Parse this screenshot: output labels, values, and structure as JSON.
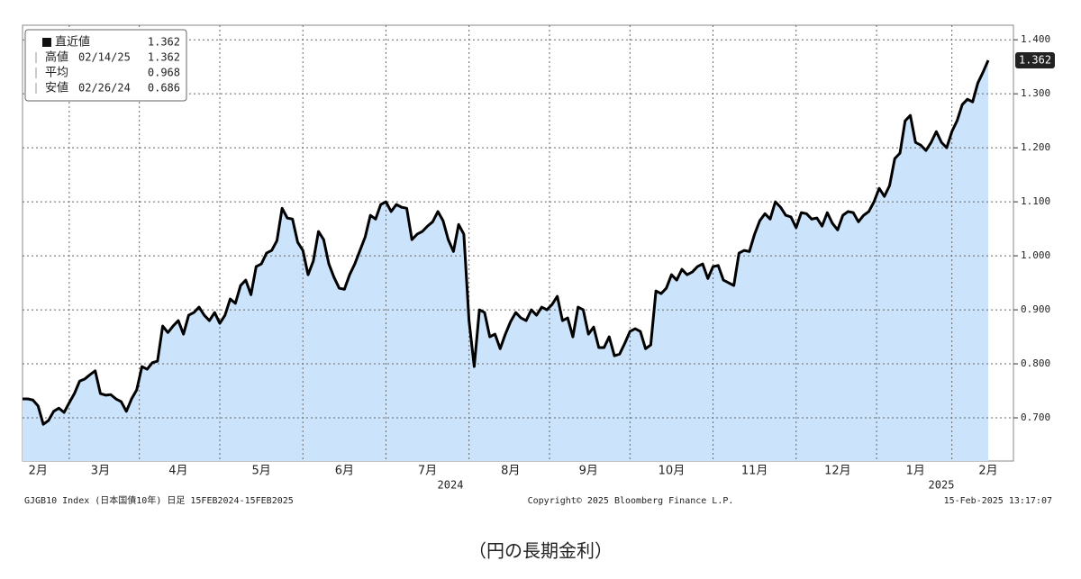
{
  "chart_data": {
    "type": "line",
    "caption": "（円の長期金利）",
    "series_name": "GJGB10 Index (日本国債10年) 日足 15FEB2024-15FEB2025",
    "copyright": "Copyright© 2025 Bloomberg Finance L.P.",
    "timestamp": "15-Feb-2025 13:17:07",
    "year_labels": [
      "2024",
      "2025"
    ],
    "legend": [
      {
        "name": "直近値",
        "value": 1.362
      },
      {
        "name": "高値",
        "date": "02/14/25",
        "value": 1.362
      },
      {
        "name": "平均",
        "value": 0.968
      },
      {
        "name": "安値",
        "date": "02/26/24",
        "value": 0.686
      }
    ],
    "color": "#000000",
    "fill": "#cce4fb",
    "grid": true,
    "ylim": [
      0.62,
      1.427
    ],
    "yticks": [
      {
        "value": 0.7,
        "label": "0.700"
      },
      {
        "value": 0.8,
        "label": "0.800"
      },
      {
        "value": 0.9,
        "label": "0.900"
      },
      {
        "value": 1.0,
        "label": "1.000"
      },
      {
        "value": 1.1,
        "label": "1.100"
      },
      {
        "value": 1.2,
        "label": "1.200"
      },
      {
        "value": 1.3,
        "label": "1.300"
      },
      {
        "value": 1.4,
        "label": "1.400"
      }
    ],
    "categories": [
      null,
      null,
      null,
      "2月",
      null,
      null,
      null,
      null,
      null,
      null,
      null,
      null,
      null,
      null,
      null,
      "3月",
      null,
      null,
      null,
      null,
      null,
      null,
      null,
      null,
      null,
      null,
      null,
      null,
      null,
      null,
      "4月",
      null,
      null,
      null,
      null,
      null,
      null,
      null,
      null,
      null,
      null,
      null,
      null,
      null,
      null,
      null,
      "5月",
      null,
      null,
      null,
      null,
      null,
      null,
      null,
      null,
      null,
      null,
      null,
      null,
      null,
      null,
      null,
      "6月",
      null,
      null,
      null,
      null,
      null,
      null,
      null,
      null,
      null,
      null,
      null,
      null,
      null,
      null,
      null,
      "7月",
      null,
      null,
      null,
      null,
      null,
      null,
      null,
      null,
      null,
      null,
      null,
      null,
      null,
      null,
      null,
      "8月",
      null,
      null,
      null,
      null,
      null,
      null,
      null,
      null,
      null,
      null,
      null,
      null,
      null,
      null,
      "9月",
      null,
      null,
      null,
      null,
      null,
      null,
      null,
      null,
      null,
      null,
      null,
      null,
      null,
      null,
      null,
      "10月",
      null,
      null,
      null,
      null,
      null,
      null,
      null,
      null,
      null,
      null,
      null,
      null,
      null,
      null,
      null,
      "11月",
      null,
      null,
      null,
      null,
      null,
      null,
      null,
      null,
      null,
      null,
      null,
      null,
      null,
      null,
      null,
      "12月",
      null,
      null,
      null,
      null,
      null,
      null,
      null,
      null,
      null,
      null,
      null,
      null,
      null,
      null,
      "1月",
      null,
      null,
      null,
      null,
      null,
      null,
      null,
      null,
      null,
      null,
      null,
      null,
      null,
      "2月"
    ],
    "values": [
      0.735,
      0.735,
      0.733,
      0.722,
      0.688,
      0.695,
      0.712,
      0.718,
      0.71,
      0.728,
      0.745,
      0.768,
      0.772,
      0.78,
      0.787,
      0.745,
      0.742,
      0.743,
      0.735,
      0.73,
      0.712,
      0.735,
      0.752,
      0.795,
      0.79,
      0.802,
      0.805,
      0.87,
      0.858,
      0.87,
      0.88,
      0.855,
      0.89,
      0.895,
      0.905,
      0.89,
      0.88,
      0.895,
      0.875,
      0.89,
      0.92,
      0.912,
      0.945,
      0.955,
      0.928,
      0.98,
      0.985,
      1.005,
      1.01,
      1.028,
      1.088,
      1.07,
      1.068,
      1.025,
      1.01,
      0.965,
      0.99,
      1.045,
      1.03,
      0.985,
      0.96,
      0.94,
      0.938,
      0.965,
      0.985,
      1.01,
      1.035,
      1.075,
      1.068,
      1.095,
      1.1,
      1.082,
      1.095,
      1.09,
      1.088,
      1.03,
      1.04,
      1.045,
      1.055,
      1.063,
      1.082,
      1.065,
      1.03,
      1.008,
      1.058,
      1.04,
      0.88,
      0.795,
      0.9,
      0.895,
      0.85,
      0.855,
      0.828,
      0.855,
      0.878,
      0.895,
      0.885,
      0.88,
      0.9,
      0.89,
      0.905,
      0.9,
      0.91,
      0.925,
      0.88,
      0.885,
      0.85,
      0.905,
      0.9,
      0.855,
      0.868,
      0.83,
      0.83,
      0.85,
      0.815,
      0.818,
      0.838,
      0.86,
      0.865,
      0.86,
      0.828,
      0.835,
      0.935,
      0.93,
      0.94,
      0.965,
      0.955,
      0.975,
      0.965,
      0.97,
      0.98,
      0.985,
      0.958,
      0.98,
      0.982,
      0.955,
      0.95,
      0.945,
      1.005,
      1.01,
      1.008,
      1.04,
      1.065,
      1.078,
      1.068,
      1.1,
      1.09,
      1.075,
      1.072,
      1.052,
      1.08,
      1.078,
      1.068,
      1.07,
      1.055,
      1.08,
      1.06,
      1.048,
      1.075,
      1.082,
      1.08,
      1.063,
      1.075,
      1.082,
      1.1,
      1.125,
      1.11,
      1.13,
      1.18,
      1.19,
      1.25,
      1.26,
      1.21,
      1.205,
      1.195,
      1.21,
      1.23,
      1.21,
      1.2,
      1.23,
      1.25,
      1.28,
      1.29,
      1.285,
      1.32,
      1.34,
      1.362
    ]
  }
}
